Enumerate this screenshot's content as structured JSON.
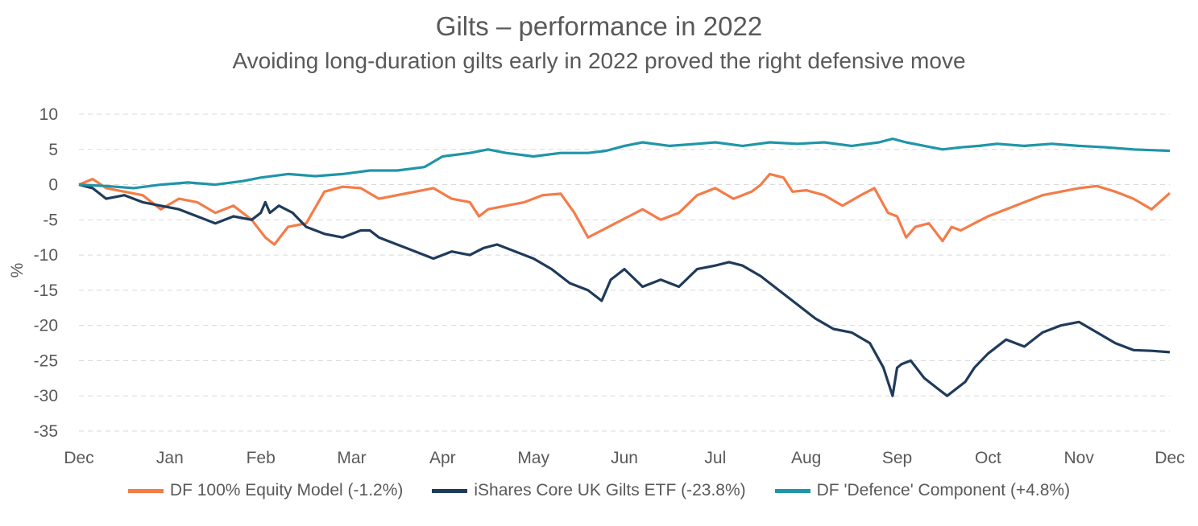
{
  "chart_data": {
    "type": "line",
    "title": "Gilts – performance in 2022",
    "subtitle": "Avoiding long-duration gilts early in 2022 proved the right defensive move",
    "xlabel": "",
    "ylabel": "%",
    "ylim": [
      -35,
      10
    ],
    "yticks": [
      10,
      5,
      0,
      -5,
      -10,
      -15,
      -20,
      -25,
      -30,
      -35
    ],
    "xlim": [
      0,
      12
    ],
    "categories": [
      "Dec",
      "Jan",
      "Feb",
      "Mar",
      "Apr",
      "May",
      "Jun",
      "Jul",
      "Aug",
      "Sep",
      "Oct",
      "Nov",
      "Dec"
    ],
    "grid": true,
    "legend_position": "bottom",
    "series": [
      {
        "name": "DF 100% Equity Model (-1.2%)",
        "color": "#f47c48",
        "x": [
          0,
          0.15,
          0.3,
          0.5,
          0.7,
          0.9,
          1.1,
          1.3,
          1.5,
          1.7,
          1.9,
          2.05,
          2.15,
          2.3,
          2.5,
          2.7,
          2.9,
          3.1,
          3.3,
          3.5,
          3.7,
          3.9,
          4.1,
          4.3,
          4.4,
          4.5,
          4.7,
          4.9,
          5.1,
          5.3,
          5.45,
          5.6,
          5.75,
          5.9,
          6.05,
          6.2,
          6.4,
          6.6,
          6.8,
          7.0,
          7.2,
          7.4,
          7.5,
          7.6,
          7.75,
          7.85,
          8.0,
          8.2,
          8.4,
          8.6,
          8.75,
          8.9,
          9.0,
          9.1,
          9.2,
          9.35,
          9.5,
          9.6,
          9.7,
          9.85,
          10.0,
          10.2,
          10.4,
          10.6,
          10.8,
          11.0,
          11.2,
          11.4,
          11.6,
          11.8,
          12.0
        ],
        "values": [
          0,
          0.8,
          -0.5,
          -1.0,
          -1.5,
          -3.5,
          -2.0,
          -2.5,
          -4.0,
          -3.0,
          -5.0,
          -7.5,
          -8.5,
          -6.0,
          -5.5,
          -1.0,
          -0.3,
          -0.5,
          -2.0,
          -1.5,
          -1.0,
          -0.5,
          -2.0,
          -2.5,
          -4.5,
          -3.5,
          -3.0,
          -2.5,
          -1.5,
          -1.3,
          -4.0,
          -7.5,
          -6.5,
          -5.5,
          -4.5,
          -3.5,
          -5.0,
          -4.0,
          -1.5,
          -0.5,
          -2.0,
          -1.0,
          0.0,
          1.5,
          1.0,
          -1.0,
          -0.8,
          -1.5,
          -3.0,
          -1.5,
          -0.5,
          -4.0,
          -4.5,
          -7.5,
          -6.0,
          -5.5,
          -8.0,
          -6.0,
          -6.5,
          -5.5,
          -4.5,
          -3.5,
          -2.5,
          -1.5,
          -1.0,
          -0.5,
          -0.2,
          -1.0,
          -2.0,
          -3.5,
          -1.2
        ]
      },
      {
        "name": "iShares Core UK Gilts ETF (-23.8%)",
        "color": "#1f3b5a",
        "x": [
          0,
          0.15,
          0.3,
          0.5,
          0.7,
          0.9,
          1.1,
          1.3,
          1.5,
          1.7,
          1.9,
          2.0,
          2.05,
          2.1,
          2.2,
          2.35,
          2.5,
          2.7,
          2.9,
          3.1,
          3.2,
          3.3,
          3.5,
          3.7,
          3.9,
          4.1,
          4.3,
          4.45,
          4.6,
          4.8,
          5.0,
          5.2,
          5.4,
          5.6,
          5.75,
          5.85,
          6.0,
          6.2,
          6.4,
          6.6,
          6.8,
          7.0,
          7.15,
          7.3,
          7.5,
          7.7,
          7.9,
          8.1,
          8.3,
          8.5,
          8.7,
          8.85,
          8.95,
          9.0,
          9.05,
          9.15,
          9.3,
          9.45,
          9.55,
          9.65,
          9.75,
          9.85,
          10.0,
          10.2,
          10.4,
          10.6,
          10.8,
          11.0,
          11.2,
          11.4,
          11.6,
          11.8,
          12.0
        ],
        "values": [
          0,
          -0.5,
          -2.0,
          -1.5,
          -2.5,
          -3.0,
          -3.5,
          -4.5,
          -5.5,
          -4.5,
          -5.0,
          -4.0,
          -2.5,
          -4.0,
          -3.0,
          -4.0,
          -6.0,
          -7.0,
          -7.5,
          -6.5,
          -6.5,
          -7.5,
          -8.5,
          -9.5,
          -10.5,
          -9.5,
          -10.0,
          -9.0,
          -8.5,
          -9.5,
          -10.5,
          -12.0,
          -14.0,
          -15.0,
          -16.5,
          -13.5,
          -12.0,
          -14.5,
          -13.5,
          -14.5,
          -12.0,
          -11.5,
          -11.0,
          -11.5,
          -13.0,
          -15.0,
          -17.0,
          -19.0,
          -20.5,
          -21.0,
          -22.5,
          -26.0,
          -30.0,
          -26.0,
          -25.5,
          -25.0,
          -27.5,
          -29.0,
          -30.0,
          -29.0,
          -28.0,
          -26.0,
          -24.0,
          -22.0,
          -23.0,
          -21.0,
          -20.0,
          -19.5,
          -21.0,
          -22.5,
          -23.5,
          -23.6,
          -23.8
        ]
      },
      {
        "name": "DF 'Defence' Component (+4.8%)",
        "color": "#1f95a8",
        "x": [
          0,
          0.3,
          0.6,
          0.9,
          1.2,
          1.5,
          1.8,
          2.0,
          2.3,
          2.6,
          2.9,
          3.2,
          3.5,
          3.8,
          4.0,
          4.3,
          4.5,
          4.7,
          5.0,
          5.3,
          5.6,
          5.8,
          6.0,
          6.2,
          6.5,
          6.8,
          7.0,
          7.3,
          7.6,
          7.9,
          8.2,
          8.5,
          8.8,
          8.95,
          9.1,
          9.3,
          9.5,
          9.7,
          9.9,
          10.1,
          10.4,
          10.7,
          11.0,
          11.3,
          11.6,
          11.8,
          12.0
        ],
        "values": [
          0,
          -0.2,
          -0.5,
          0.0,
          0.3,
          0.0,
          0.5,
          1.0,
          1.5,
          1.2,
          1.5,
          2.0,
          2.0,
          2.5,
          4.0,
          4.5,
          5.0,
          4.5,
          4.0,
          4.5,
          4.5,
          4.8,
          5.5,
          6.0,
          5.5,
          5.8,
          6.0,
          5.5,
          6.0,
          5.8,
          6.0,
          5.5,
          6.0,
          6.5,
          6.0,
          5.5,
          5.0,
          5.3,
          5.5,
          5.8,
          5.5,
          5.8,
          5.5,
          5.3,
          5.0,
          4.9,
          4.8
        ]
      }
    ]
  }
}
